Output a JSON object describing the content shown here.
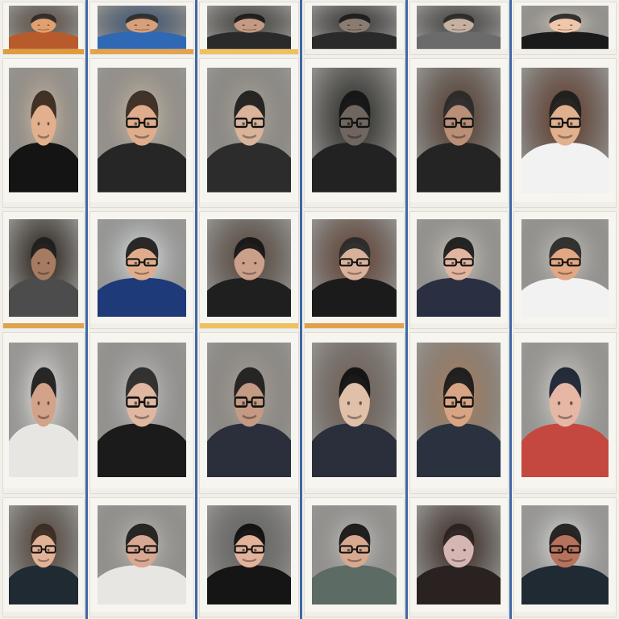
{
  "image": {
    "description_kind": "collage",
    "rows": 5,
    "cols": 6
  },
  "cards": [
    {
      "row": 0,
      "col": 0,
      "bg": "#6a5a4c",
      "skin": "#e1a06f",
      "shirt": "#b85b2c",
      "hair": "#2b2b2b",
      "glasses": false,
      "label": "",
      "strip": "#e09b3a"
    },
    {
      "row": 0,
      "col": 1,
      "bg": "#3f5f86",
      "skin": "#d7a07b",
      "shirt": "#2f69b5",
      "hair": "#2d2d2d",
      "glasses": false,
      "label": "",
      "strip": "#e6a24a"
    },
    {
      "row": 0,
      "col": 2,
      "bg": "#4a4a45",
      "skin": "#c49a82",
      "shirt": "#2a2a2a",
      "hair": "#1b1b1b",
      "glasses": false,
      "label": "",
      "strip": "#efc15e"
    },
    {
      "row": 0,
      "col": 3,
      "bg": "#3b3b3b",
      "skin": "#8b7c71",
      "shirt": "#2a2a2a",
      "hair": "#1c1c1c",
      "glasses": false,
      "label": "",
      "strip": "#f2efe9"
    },
    {
      "row": 0,
      "col": 4,
      "bg": "#4b4b4b",
      "skin": "#c6b0a0",
      "shirt": "#6b6b6b",
      "hair": "#2a2a2a",
      "glasses": false,
      "label": "",
      "strip": "#f2efe9"
    },
    {
      "row": 0,
      "col": 5,
      "bg": "#d9d2c6",
      "skin": "#f0c7a8",
      "shirt": "#1a1a1a",
      "hair": "#2a2a2a",
      "glasses": false,
      "label": "",
      "strip": "#f2efe9"
    },
    {
      "row": 1,
      "col": 0,
      "bg": "#d8c7b3",
      "skin": "#e3b08d",
      "shirt": "#141414",
      "hair": "#3a2a1f",
      "glasses": false,
      "label": "",
      "strip": "#f2efe9"
    },
    {
      "row": 1,
      "col": 1,
      "bg": "#d6c9b7",
      "skin": "#e0ad8c",
      "shirt": "#262626",
      "hair": "#3a2c22",
      "glasses": true,
      "label": "",
      "strip": "#f2efe9"
    },
    {
      "row": 1,
      "col": 2,
      "bg": "#b9b2a8",
      "skin": "#d9b49b",
      "shirt": "#2c2c2c",
      "hair": "#1f1f1f",
      "glasses": true,
      "label": "",
      "strip": "#f2efe9"
    },
    {
      "row": 1,
      "col": 3,
      "bg": "#2a2a25",
      "skin": "#6f675f",
      "shirt": "#222222",
      "hair": "#151515",
      "glasses": true,
      "label": "",
      "strip": "#f2efe9"
    },
    {
      "row": 1,
      "col": 4,
      "bg": "#5a3e2f",
      "skin": "#b98f77",
      "shirt": "#242424",
      "hair": "#2a2a2a",
      "glasses": true,
      "label": "",
      "strip": "#f2efe9"
    },
    {
      "row": 1,
      "col": 5,
      "bg": "#6a3d2a",
      "skin": "#e0b08f",
      "shirt": "#f2f2f2",
      "hair": "#1d1d1d",
      "glasses": true,
      "label": "",
      "strip": "#f2efe9"
    },
    {
      "row": 2,
      "col": 0,
      "bg": "#2b2119",
      "skin": "#a57b62",
      "shirt": "#4c4c4c",
      "hair": "#1d1d1d",
      "glasses": false,
      "label": "",
      "strip": "#e1a24d"
    },
    {
      "row": 2,
      "col": 1,
      "bg": "#eef2f4",
      "skin": "#e0ad8c",
      "shirt": "#1f3a78",
      "hair": "#202020",
      "glasses": true,
      "label": "",
      "strip": "#f2efe9"
    },
    {
      "row": 2,
      "col": 2,
      "bg": "#5e4c3e",
      "skin": "#caa08a",
      "shirt": "#1f1f1f",
      "hair": "#161616",
      "glasses": false,
      "label": "",
      "strip": "#efc15e"
    },
    {
      "row": 2,
      "col": 3,
      "bg": "#6b4331",
      "skin": "#d9b19a",
      "shirt": "#1b1b1b",
      "hair": "#2a2a2a",
      "glasses": true,
      "label": "",
      "strip": "#e3a04b"
    },
    {
      "row": 2,
      "col": 4,
      "bg": "#d9d4cc",
      "skin": "#e2b5a0",
      "shirt": "#2a3042",
      "hair": "#1b1b1b",
      "glasses": true,
      "label": "",
      "strip": "#f2efe9"
    },
    {
      "row": 2,
      "col": 5,
      "bg": "#d6d2cc",
      "skin": "#e2a783",
      "shirt": "#f2f2f2",
      "hair": "#2a2a2a",
      "glasses": true,
      "label": "",
      "strip": "#f2efe9"
    },
    {
      "row": 3,
      "col": 0,
      "bg": "#f6f4f2",
      "skin": "#d2a389",
      "shirt": "#e8e6e3",
      "hair": "#1f1f1f",
      "glasses": false,
      "label": "",
      "strip": "#f2efe9"
    },
    {
      "row": 3,
      "col": 1,
      "bg": "#d3d1cf",
      "skin": "#e0b8a1",
      "shirt": "#1b1b1b",
      "hair": "#2a2a2a",
      "glasses": true,
      "label": "",
      "strip": "#f2efe9"
    },
    {
      "row": 3,
      "col": 2,
      "bg": "#b9b0a7",
      "skin": "#c59a84",
      "shirt": "#2a2f3b",
      "hair": "#1f1f1f",
      "glasses": true,
      "label": "",
      "strip": "#f2efe9"
    },
    {
      "row": 3,
      "col": 3,
      "bg": "#7a675a",
      "skin": "#e0c0a8",
      "shirt": "#2b2f3b",
      "hair": "#111111",
      "glasses": false,
      "label": "",
      "strip": "#f2efe9"
    },
    {
      "row": 3,
      "col": 4,
      "bg": "#ba8c66",
      "skin": "#d7a583",
      "shirt": "#2a3240",
      "hair": "#1a1a1a",
      "glasses": true,
      "label": "",
      "strip": "#f2efe9"
    },
    {
      "row": 3,
      "col": 5,
      "bg": "#e6e3de",
      "skin": "#e7b7a6",
      "shirt": "#c4483f",
      "hair": "#1b2433",
      "glasses": false,
      "label": "",
      "strip": "#f2efe9"
    },
    {
      "row": 4,
      "col": 0,
      "bg": "#5a4b3f",
      "skin": "#e2b296",
      "shirt": "#1f2a33",
      "hair": "#3b2b21",
      "glasses": true,
      "label": "",
      "strip": "#f2efe9"
    },
    {
      "row": 4,
      "col": 1,
      "bg": "#cfcac4",
      "skin": "#d8a892",
      "shirt": "#e8e6e3",
      "hair": "#1f1f1f",
      "glasses": true,
      "label": "",
      "strip": "#f2efe9"
    },
    {
      "row": 4,
      "col": 2,
      "bg": "#6d6d6d",
      "skin": "#e2b29a",
      "shirt": "#151515",
      "hair": "#0f0f0f",
      "glasses": true,
      "label": "",
      "strip": "#f2efe9"
    },
    {
      "row": 4,
      "col": 3,
      "bg": "#cfcdca",
      "skin": "#d8a98f",
      "shirt": "#5c6b64",
      "hair": "#171717",
      "glasses": true,
      "label": "",
      "strip": "#f2efe9"
    },
    {
      "row": 4,
      "col": 4,
      "bg": "#3e2a22",
      "skin": "#d5b6b3",
      "shirt": "#2a2220",
      "hair": "#2a2220",
      "glasses": false,
      "label": "",
      "strip": "#f2efe9"
    },
    {
      "row": 4,
      "col": 5,
      "bg": "#f0f0f0",
      "skin": "#b7725d",
      "shirt": "#1f2a33",
      "hair": "#1f1f1f",
      "glasses": true,
      "label": "",
      "strip": "#f2efe9"
    }
  ]
}
